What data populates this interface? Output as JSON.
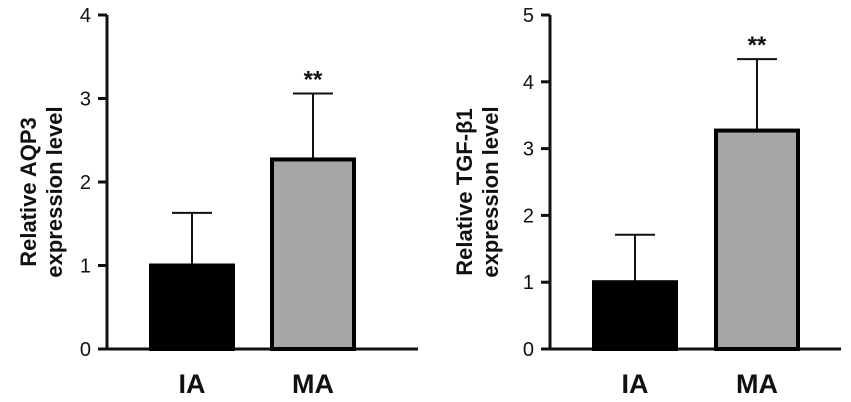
{
  "chart_data": [
    {
      "type": "bar",
      "categories": [
        "IA",
        "MA"
      ],
      "values": [
        1.0,
        2.27
      ],
      "errors": [
        0.63,
        0.79
      ],
      "significance": [
        "",
        "**"
      ],
      "bar_colors": [
        "#000000",
        "#a6a6a8"
      ],
      "ylabel_lines": [
        "Relative AQP3",
        "expression level"
      ],
      "ylim": [
        0,
        4
      ],
      "yticks": [
        0,
        1,
        2,
        3,
        4
      ],
      "title": "",
      "xlabel": "",
      "grid": false,
      "legend": "none"
    },
    {
      "type": "bar",
      "categories": [
        "IA",
        "MA"
      ],
      "values": [
        1.0,
        3.27
      ],
      "errors": [
        0.71,
        1.07
      ],
      "significance": [
        "",
        "**"
      ],
      "bar_colors": [
        "#000000",
        "#a6a6a8"
      ],
      "ylabel_lines": [
        "Relative TGF-β1",
        "expression level"
      ],
      "ylim": [
        0,
        5
      ],
      "yticks": [
        0,
        1,
        2,
        3,
        4,
        5
      ],
      "title": "",
      "xlabel": "",
      "grid": false,
      "legend": "none"
    }
  ]
}
